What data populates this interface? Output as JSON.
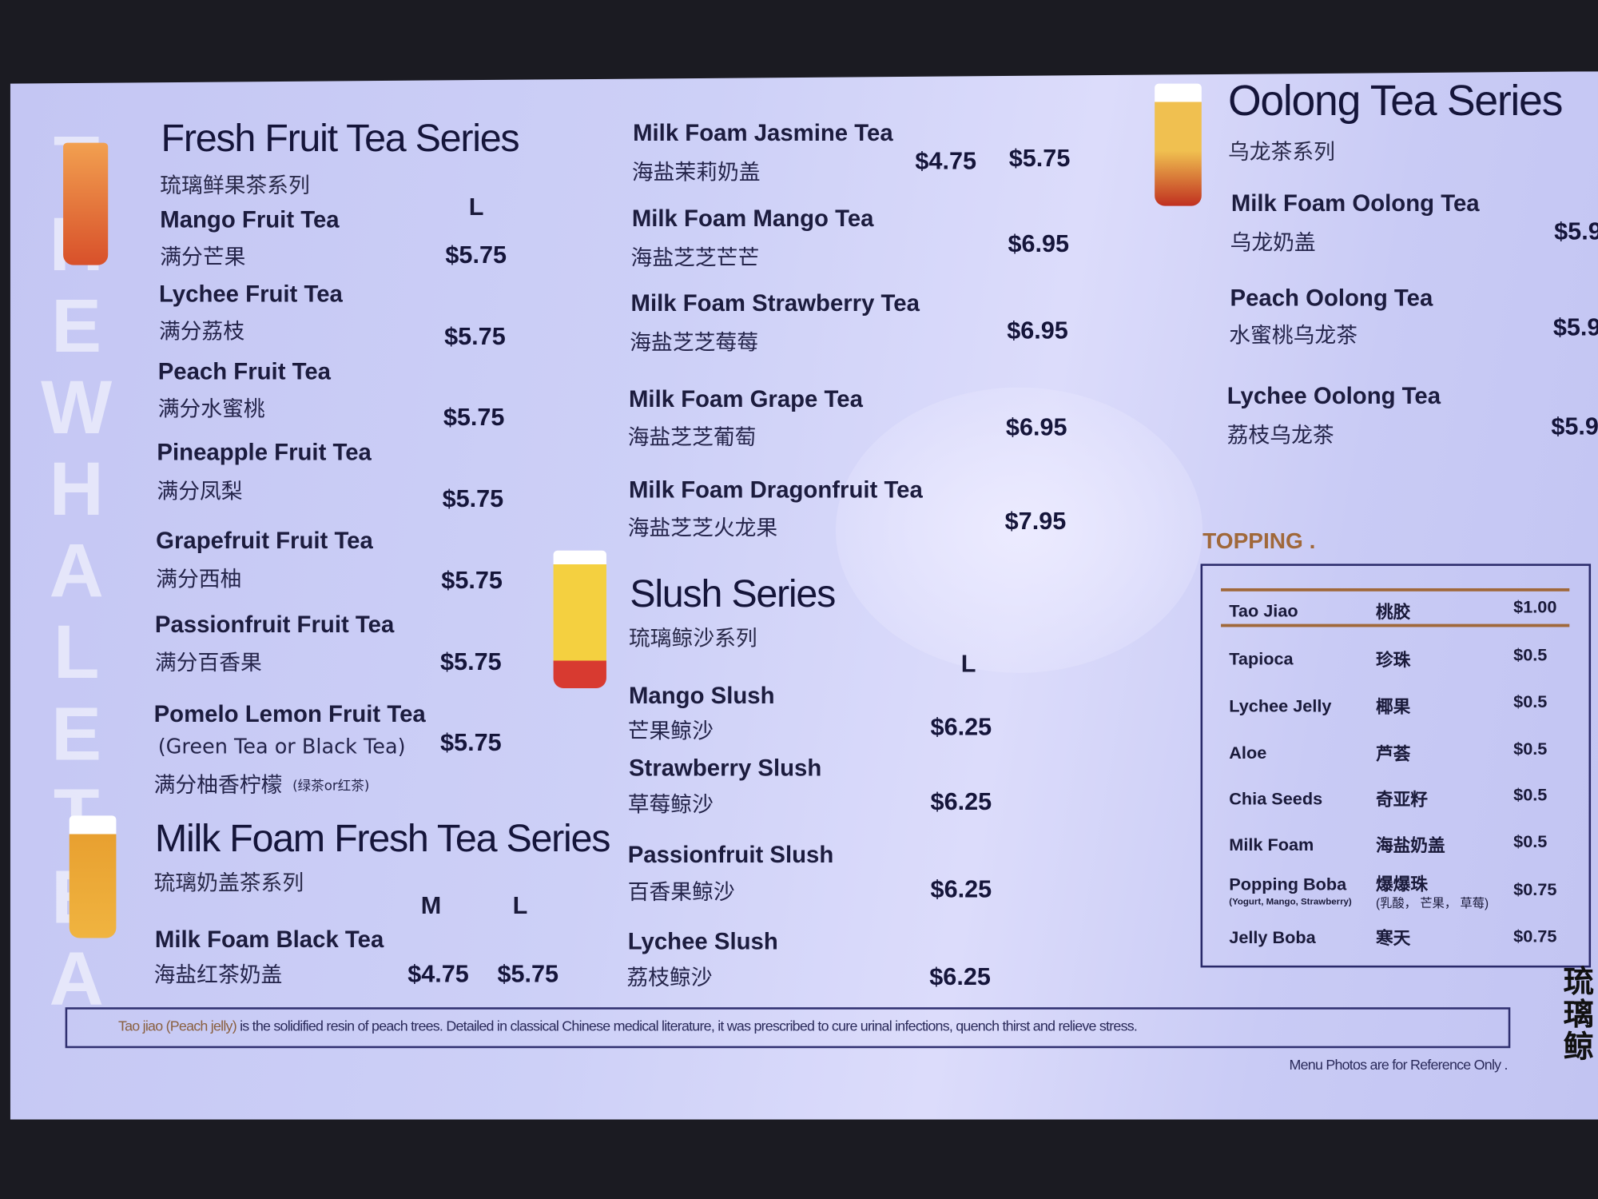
{
  "brand": {
    "vertical_text": "THE WHALE TEA",
    "logo_text": "琉璃鲸"
  },
  "fresh_fruit": {
    "title": "Fresh Fruit Tea Series",
    "subtitle": "琉璃鲜果茶系列",
    "size": "L",
    "items": [
      {
        "name": "Mango Fruit Tea",
        "cn": "满分芒果",
        "price": "$5.75"
      },
      {
        "name": "Lychee Fruit Tea",
        "cn": "满分荔枝",
        "price": "$5.75"
      },
      {
        "name": "Peach Fruit Tea",
        "cn": "满分水蜜桃",
        "price": "$5.75"
      },
      {
        "name": "Pineapple Fruit Tea",
        "cn": "满分凤梨",
        "price": "$5.75"
      },
      {
        "name": "Grapefruit Fruit Tea",
        "cn": "满分西柚",
        "price": "$5.75"
      },
      {
        "name": "Passionfruit Fruit Tea",
        "cn": "满分百香果",
        "price": "$5.75"
      },
      {
        "name": "Pomelo Lemon Fruit Tea",
        "note": "(Green Tea or Black Tea)",
        "cn": "满分柚香柠檬",
        "cn_note": "(绿茶or红茶)",
        "price": "$5.75"
      }
    ]
  },
  "milk_foam_fresh": {
    "title": "Milk Foam Fresh Tea Series",
    "subtitle": "琉璃奶盖茶系列",
    "sizes": [
      "M",
      "L"
    ],
    "items": [
      {
        "name": "Milk Foam Black Tea",
        "cn": "海盐红茶奶盖",
        "price_m": "$4.75",
        "price_l": "$5.75"
      }
    ]
  },
  "milk_foam_fruit": {
    "items": [
      {
        "name": "Milk Foam Jasmine Tea",
        "cn": "海盐茉莉奶盖",
        "price_m": "$4.75",
        "price_l": "$5.75"
      },
      {
        "name": "Milk Foam Mango Tea",
        "cn": "海盐芝芝芒芒",
        "price_l": "$6.95"
      },
      {
        "name": "Milk Foam Strawberry Tea",
        "cn": "海盐芝芝莓莓",
        "price_l": "$6.95"
      },
      {
        "name": "Milk Foam Grape Tea",
        "cn": "海盐芝芝葡萄",
        "price_l": "$6.95"
      },
      {
        "name": "Milk Foam Dragonfruit Tea",
        "cn": "海盐芝芝火龙果",
        "price_l": "$7.95"
      }
    ]
  },
  "slush": {
    "title": "Slush Series",
    "subtitle": "琉璃鲸沙系列",
    "size": "L",
    "items": [
      {
        "name": "Mango Slush",
        "cn": "芒果鲸沙",
        "price": "$6.25"
      },
      {
        "name": "Strawberry Slush",
        "cn": "草莓鲸沙",
        "price": "$6.25"
      },
      {
        "name": "Passionfruit Slush",
        "cn": "百香果鲸沙",
        "price": "$6.25"
      },
      {
        "name": "Lychee Slush",
        "cn": "荔枝鲸沙",
        "price": "$6.25"
      }
    ]
  },
  "oolong": {
    "title": "Oolong Tea Series",
    "subtitle": "乌龙茶系列",
    "items": [
      {
        "name": "Milk Foam Oolong Tea",
        "cn": "乌龙奶盖",
        "price": "$5.9"
      },
      {
        "name": "Peach Oolong Tea",
        "cn": "水蜜桃乌龙茶",
        "price": "$5.9"
      },
      {
        "name": "Lychee  Oolong Tea",
        "cn": "荔枝乌龙茶",
        "price": "$5.9"
      }
    ]
  },
  "topping": {
    "title": "TOPPING .",
    "items": [
      {
        "name": "Tao Jiao",
        "cn": "桃胶",
        "price": "$1.00"
      },
      {
        "name": "Tapioca",
        "cn": "珍珠",
        "price": "$0.5"
      },
      {
        "name": "Lychee Jelly",
        "cn": "椰果",
        "price": "$0.5"
      },
      {
        "name": "Aloe",
        "cn": "芦荟",
        "price": "$0.5"
      },
      {
        "name": "Chia Seeds",
        "cn": "奇亚籽",
        "price": "$0.5"
      },
      {
        "name": "Milk Foam",
        "cn": "海盐奶盖",
        "price": "$0.5"
      },
      {
        "name": "Popping Boba",
        "note": "(Yogurt, Mango, Strawberry)",
        "cn": "爆爆珠",
        "cn_note": "(乳酸， 芒果， 草莓)",
        "price": "$0.75"
      },
      {
        "name": "Jelly Boba",
        "cn": "寒天",
        "price": "$0.75"
      }
    ]
  },
  "footer": {
    "note_highlight": "Tao jiao (Peach jelly)",
    "note": " is the solidified resin of peach trees. Detailed in classical Chinese medical literature, it was prescribed to cure urinal infections, quench thirst and relieve stress.",
    "disclaimer": "Menu Photos are for Reference Only ."
  },
  "colors": {
    "screen": "#c8caf5",
    "accent": "#a0683a",
    "text": "#15153a"
  }
}
